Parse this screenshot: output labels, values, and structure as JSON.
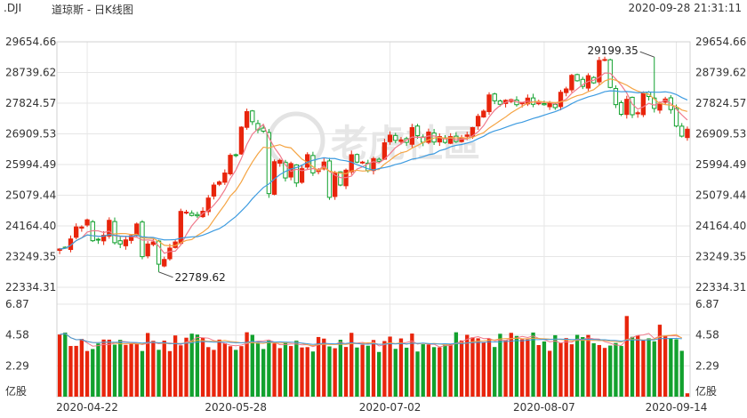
{
  "header": {
    "symbol": ".DJI",
    "name": "道琼斯 - 日K线图",
    "timestamp": "2020-09-28 21:31:11"
  },
  "colors": {
    "up": "#e8250c",
    "down": "#12a12e",
    "ma5": "#f07a8c",
    "ma10": "#f5a443",
    "ma20": "#3d9be0",
    "grid": "#e6e6e6"
  },
  "watermark": "老虎社區",
  "chart_data": {
    "type": "candlestick",
    "price_axis": {
      "ticks": [
        "29654.66",
        "28739.62",
        "27824.57",
        "26909.53",
        "25994.49",
        "25079.44",
        "24164.40",
        "23249.35",
        "22334.31"
      ],
      "range": [
        22334.31,
        29654.66
      ]
    },
    "volume_axis": {
      "ticks": [
        "6.87",
        "4.58",
        "2.29"
      ],
      "unit": "亿股",
      "range": [
        0,
        6.87
      ]
    },
    "x_ticks": [
      "2020-04-22",
      "2020-05-28",
      "2020-07-02",
      "2020-08-07",
      "2020-09-14"
    ],
    "annotations": [
      {
        "label": "29199.35",
        "type": "high",
        "index": 108
      },
      {
        "label": "22789.62",
        "type": "low",
        "index": 18
      }
    ],
    "moving_averages": [
      "MA5",
      "MA10",
      "MA20"
    ],
    "close": [
      23475,
      23515,
      23775,
      24134,
      24133,
      24345,
      23723,
      23749,
      23883,
      24331,
      23664,
      23625,
      23748,
      23875,
      24221,
      23247,
      23625,
      23686,
      23022,
      23164,
      23504,
      23685,
      24597,
      24575,
      24475,
      24465,
      24602,
      24995,
      25383,
      25475,
      25742,
      26270,
      26282,
      27110,
      27572,
      27272,
      27029,
      26990,
      25128,
      26080,
      26120,
      25595,
      26024,
      25445,
      25871,
      26289,
      25745,
      25812,
      26070,
      25016,
      25734,
      25383,
      25827,
      26287,
      26067,
      26067,
      25813,
      26170,
      26094,
      26643,
      26870,
      26713,
      26732,
      26655,
      27095,
      26855,
      26660,
      26964,
      26665,
      26828,
      26654,
      26828,
      26679,
      26780,
      26875,
      27096,
      27433,
      27587,
      28070,
      27895,
      27791,
      27911,
      27931,
      27779,
      27833,
      27976,
      27791,
      27865,
      27778,
      27845,
      27693,
      28150,
      28249,
      28654,
      28492,
      28324,
      28645,
      28430,
      29100,
      29126,
      28293,
      27781,
      27493,
      27940,
      27480,
      27538,
      28120,
      28024,
      27668,
      27817,
      27948,
      27634,
      27142,
      26841,
      27048
    ]
  }
}
